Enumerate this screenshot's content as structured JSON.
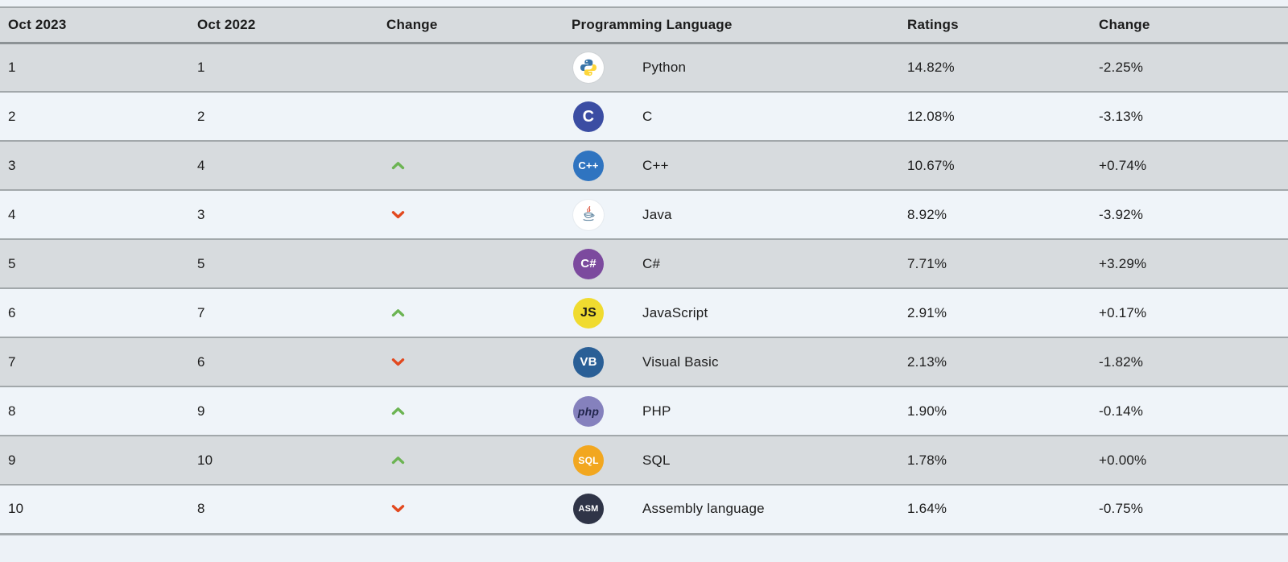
{
  "page": {
    "title": "TIOBE programming language ranking table"
  },
  "colors": {
    "page_bg": "#edf2f7",
    "header_bg": "#d7dbde",
    "row_odd": "#d7dbde",
    "row_even": "#eff4f9",
    "border": "#a2a8ab",
    "border_strong": "#8c9295",
    "text": "#1c1c1c",
    "arrow_up": "#6cb453",
    "arrow_down": "#e2491f"
  },
  "table": {
    "headers": [
      {
        "label": "Oct 2023"
      },
      {
        "label": "Oct 2022"
      },
      {
        "label": "Change"
      },
      {
        "label": "Programming Language"
      },
      {
        "label": "Ratings"
      },
      {
        "label": "Change"
      }
    ],
    "rows": [
      {
        "pos2023": "1",
        "pos2022": "1",
        "direction": "none",
        "language": "Python",
        "ratings": "14.82%",
        "change": "-2.25%",
        "icon": {
          "name": "python-icon",
          "type": "python",
          "bg": "#ffffff",
          "blue": "#3874a8",
          "yellow": "#fdd63a"
        }
      },
      {
        "pos2023": "2",
        "pos2022": "2",
        "direction": "none",
        "language": "C",
        "ratings": "12.08%",
        "change": "-3.13%",
        "icon": {
          "name": "c-icon",
          "type": "badge",
          "bg": "#3b4da3",
          "fg": "#ffffff",
          "text": "C",
          "font_size": 20
        }
      },
      {
        "pos2023": "3",
        "pos2022": "4",
        "direction": "up",
        "language": "C++",
        "ratings": "10.67%",
        "change": "+0.74%",
        "icon": {
          "name": "cpp-icon",
          "type": "badge",
          "bg": "#2f74c0",
          "fg": "#ffffff",
          "text": "C++",
          "font_size": 13
        }
      },
      {
        "pos2023": "4",
        "pos2022": "3",
        "direction": "down",
        "language": "Java",
        "ratings": "8.92%",
        "change": "-3.92%",
        "icon": {
          "name": "java-icon",
          "type": "java",
          "bg": "#ffffff",
          "steam": "#d63b22",
          "cup": "#4e7896"
        }
      },
      {
        "pos2023": "5",
        "pos2022": "5",
        "direction": "none",
        "language": "C#",
        "ratings": "7.71%",
        "change": "+3.29%",
        "icon": {
          "name": "csharp-icon",
          "type": "badge",
          "bg": "#7c4a9e",
          "fg": "#ffffff",
          "text": "C#",
          "font_size": 15
        }
      },
      {
        "pos2023": "6",
        "pos2022": "7",
        "direction": "up",
        "language": "JavaScript",
        "ratings": "2.91%",
        "change": "+0.17%",
        "icon": {
          "name": "javascript-icon",
          "type": "badge",
          "bg": "#f0db2f",
          "fg": "#1a1a1a",
          "text": "JS",
          "font_size": 16
        }
      },
      {
        "pos2023": "7",
        "pos2022": "6",
        "direction": "down",
        "language": "Visual Basic",
        "ratings": "2.13%",
        "change": "-1.82%",
        "icon": {
          "name": "visual-basic-icon",
          "type": "badge",
          "bg": "#2a5f96",
          "fg": "#ffffff",
          "text": "VB",
          "font_size": 15
        }
      },
      {
        "pos2023": "8",
        "pos2022": "9",
        "direction": "up",
        "language": "PHP",
        "ratings": "1.90%",
        "change": "-0.14%",
        "icon": {
          "name": "php-icon",
          "type": "badge",
          "bg": "#8581bd",
          "fg": "#22264d",
          "text": "php",
          "font_size": 14,
          "italic": true
        }
      },
      {
        "pos2023": "9",
        "pos2022": "10",
        "direction": "up",
        "language": "SQL",
        "ratings": "1.78%",
        "change": "+0.00%",
        "icon": {
          "name": "sql-icon",
          "type": "badge",
          "bg": "#f2a71f",
          "fg": "#ffffff",
          "text": "SQL",
          "font_size": 12
        }
      },
      {
        "pos2023": "10",
        "pos2022": "8",
        "direction": "down",
        "language": "Assembly language",
        "ratings": "1.64%",
        "change": "-0.75%",
        "icon": {
          "name": "assembly-icon",
          "type": "badge",
          "bg": "#2f3447",
          "fg": "#ffffff",
          "text": "ASM",
          "font_size": 11
        }
      }
    ]
  }
}
